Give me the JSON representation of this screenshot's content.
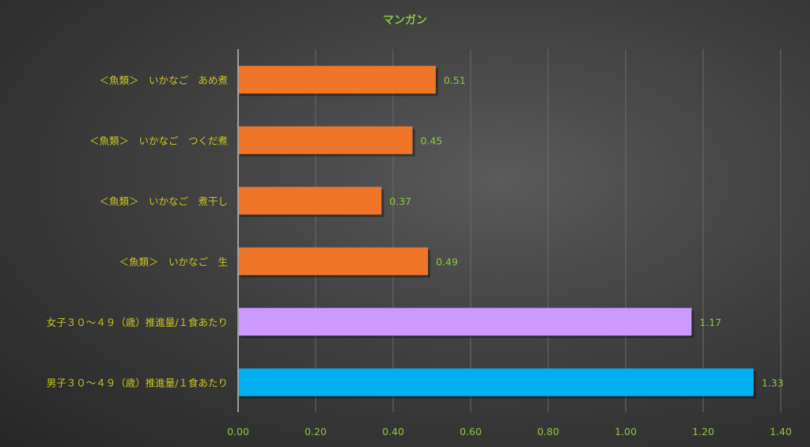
{
  "chart_data": {
    "type": "bar",
    "orientation": "horizontal",
    "title": "マンガン",
    "categories": [
      "＜魚類＞　いかなご　あめ煮",
      "＜魚類＞　いかなご　つくだ煮",
      "＜魚類＞　いかなご　煮干し",
      "＜魚類＞　いかなご　生",
      "女子３０～４９（歳）推進量/１食あたり",
      "男子３０～４９（歳）推進量/１食あたり"
    ],
    "values": [
      0.51,
      0.45,
      0.37,
      0.49,
      1.17,
      1.33
    ],
    "data_labels": [
      "0.51",
      "0.45",
      "0.37",
      "0.49",
      "1.17",
      "1.33"
    ],
    "bar_colors": [
      "#ef7628",
      "#ef7628",
      "#ef7628",
      "#ef7628",
      "#cc99ff",
      "#00b0f0"
    ],
    "xlim": [
      0,
      1.4
    ],
    "x_ticks": [
      "0.00",
      "0.20",
      "0.40",
      "0.60",
      "0.80",
      "1.00",
      "1.20",
      "1.40"
    ],
    "grid": true,
    "legend": "none"
  }
}
